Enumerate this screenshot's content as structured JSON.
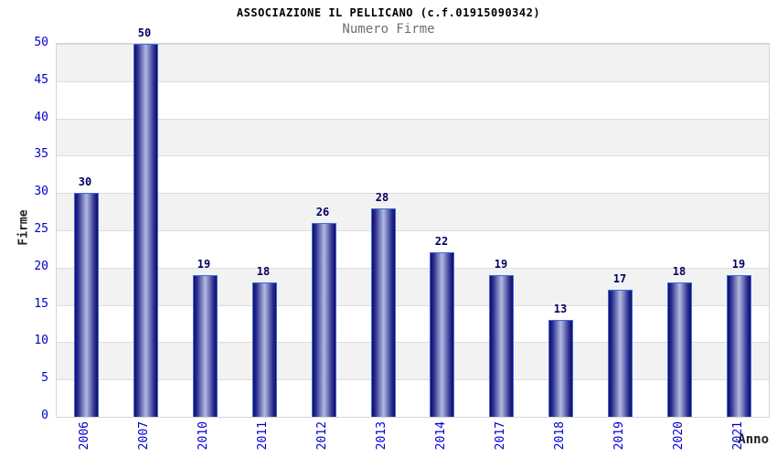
{
  "chart_data": {
    "type": "bar",
    "title": "ASSOCIAZIONE IL PELLICANO (c.f.01915090342)",
    "subtitle": "Numero Firme",
    "xlabel": "Anno",
    "ylabel": "Firme",
    "categories": [
      "2006",
      "2007",
      "2010",
      "2011",
      "2012",
      "2013",
      "2014",
      "2017",
      "2018",
      "2019",
      "2020",
      "2021"
    ],
    "values": [
      30,
      50,
      19,
      18,
      26,
      28,
      22,
      19,
      13,
      17,
      18,
      19
    ],
    "ylim": [
      0,
      50
    ],
    "ytick_step": 5,
    "yticks": [
      0,
      5,
      10,
      15,
      20,
      25,
      30,
      35,
      40,
      45,
      50
    ],
    "grid": "alternating horizontal bands every 5 units (white / light gray)",
    "legend": "none",
    "value_labels": "above bars"
  },
  "colors": {
    "title": "#000000",
    "subtitle": "#6e6e6e",
    "tick_label": "#0000cc",
    "value_label": "#000066",
    "axis_label": "#222222",
    "bar_edge": "#10105e",
    "bar_mid": "#b2badf",
    "bar_border": "#3f6ce0",
    "band_gray": "#f2f2f2",
    "band_white": "#ffffff",
    "grid_line": "#dcdcdc",
    "plot_border": "#d4d4d4"
  }
}
